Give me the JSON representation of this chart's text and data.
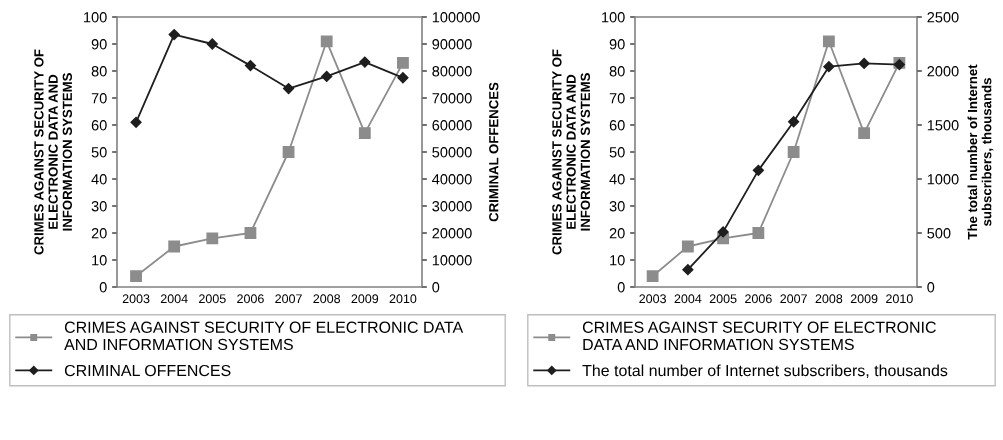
{
  "chart_data": [
    {
      "type": "line",
      "categories": [
        "2003",
        "2004",
        "2005",
        "2006",
        "2007",
        "2008",
        "2009",
        "2010"
      ],
      "ylabel": "CRIMES AGAINST SECURITY OF\nELECTRONIC DATA AND\nINFORMATION SYSTEMS",
      "y2label": "CRIMINAL OFFENCES",
      "ylim": [
        0,
        100
      ],
      "yticks": [
        0,
        10,
        20,
        30,
        40,
        50,
        60,
        70,
        80,
        90,
        100
      ],
      "y2lim": [
        0,
        100000
      ],
      "y2ticks": [
        0,
        10000,
        20000,
        30000,
        40000,
        50000,
        60000,
        70000,
        80000,
        90000,
        100000
      ],
      "legend": "bottom",
      "grid": false,
      "series": [
        {
          "name": "CRIMES AGAINST SECURITY OF ELECTRONIC DATA\nAND INFORMATION SYSTEMS",
          "color": "#8c8c8c",
          "marker": "square",
          "values": [
            4,
            15,
            18,
            20,
            50,
            91,
            57,
            83
          ]
        },
        {
          "name": "CRIMINAL OFFENCES",
          "color": "#1e1e1e",
          "marker": "diamond",
          "axis": "y2",
          "values": [
            61000,
            93500,
            90000,
            82000,
            73500,
            78000,
            83300,
            77500
          ]
        }
      ]
    },
    {
      "type": "line",
      "categories": [
        "2003",
        "2004",
        "2005",
        "2006",
        "2007",
        "2008",
        "2009",
        "2010"
      ],
      "ylabel": "CRIMES AGAINST SECURITY OF\nELECTRONIC DATA AND\nINFORMATION SYSTEMS",
      "y2label": "The total number of Internet\nsubscribers, thousands",
      "ylim": [
        0,
        100
      ],
      "yticks": [
        0,
        10,
        20,
        30,
        40,
        50,
        60,
        70,
        80,
        90,
        100
      ],
      "y2lim": [
        0,
        2500
      ],
      "y2ticks": [
        0,
        500,
        1000,
        1500,
        2000,
        2500
      ],
      "legend": "bottom",
      "grid": false,
      "series": [
        {
          "name": "CRIMES AGAINST SECURITY OF ELECTRONIC\nDATA AND INFORMATION SYSTEMS",
          "color": "#8c8c8c",
          "marker": "square",
          "values": [
            4,
            15,
            18,
            20,
            50,
            91,
            57,
            83
          ]
        },
        {
          "name": "The total number of Internet subscribers, thousands",
          "color": "#1e1e1e",
          "marker": "diamond",
          "axis": "y2",
          "values": [
            null,
            160,
            510,
            1080,
            1530,
            2040,
            2070,
            2060
          ]
        }
      ]
    }
  ]
}
